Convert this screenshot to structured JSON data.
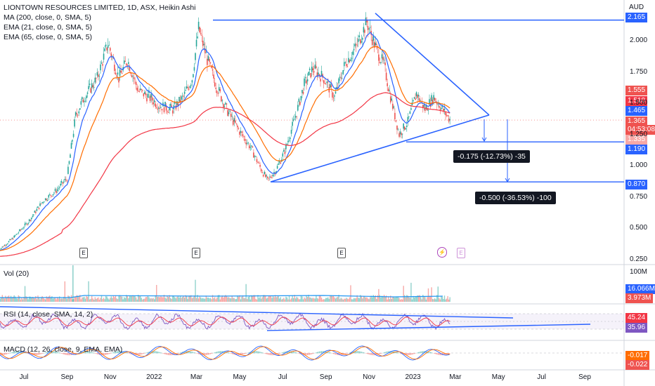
{
  "header": {
    "title": "LIONTOWN RESOURCES LIMITED, 1D, ASX, Heikin Ashi",
    "indicators": [
      "MA (200, close, 0, SMA, 5)",
      "EMA (21, close, 0, SMA, 5)",
      "EMA (65, close, 0, SMA, 5)"
    ]
  },
  "colors": {
    "up": "#26a69a",
    "down": "#ef5350",
    "ema21": "#2962ff",
    "ema65": "#ff6d00",
    "ma200": "#f23645",
    "trend": "#2962ff",
    "volume_ma": "#2196f3",
    "rsi": "#7e57c2",
    "rsi_ma": "#f23645",
    "macd": "#2962ff",
    "macd_signal": "#ff6d00"
  },
  "chart_data": [
    {
      "type": "line",
      "pane": "price",
      "currency": "AUD",
      "y_ticks": [
        "2.165",
        "2.000",
        "1.750",
        "1.500",
        "1.250",
        "1.000",
        "0.750",
        "0.500",
        "0.250"
      ],
      "x_ticks": [
        "Jul",
        "Sep",
        "Nov",
        "2022",
        "Mar",
        "May",
        "Jul",
        "Sep",
        "Nov",
        "2023",
        "Mar",
        "May",
        "Jul",
        "Sep"
      ],
      "price_tags": [
        {
          "label": "1.555",
          "kind": "ema65"
        },
        {
          "label": "1.510",
          "kind": "ma200"
        },
        {
          "label": "1.465",
          "kind": "ema21"
        },
        {
          "label": "1.365",
          "kind": "last"
        },
        {
          "label": "04:53:08",
          "kind": "countdown"
        },
        {
          "label": "1.335",
          "kind": "down"
        },
        {
          "label": "1.190",
          "kind": "level"
        },
        {
          "label": "0.870",
          "kind": "level"
        }
      ],
      "horizontal_levels": [
        2.165,
        1.19,
        0.87
      ],
      "triangle": {
        "apex": [
          "Nov 2022",
          2.2
        ],
        "right": [
          "Apr 2023",
          1.42
        ],
        "low": [
          "Jun 2022",
          0.87
        ],
        "mid": [
          "Dec 2022",
          1.2
        ]
      },
      "measurements": [
        "-0.175 (-12.73%) -35",
        "-0.500 (-36.53%) -100"
      ],
      "earnings_marks": [
        "E",
        "E",
        "E",
        "E"
      ],
      "dividend_mark": "⚡"
    },
    {
      "type": "bar",
      "pane": "volume",
      "label": "Vol (20)",
      "y_ticks": [
        "100M"
      ],
      "tags": [
        "16.066M",
        "3.973M"
      ]
    },
    {
      "type": "line",
      "pane": "rsi",
      "label": "RSI (14, close, SMA, 14, 2)",
      "tags": [
        "45.24",
        "35.96"
      ]
    },
    {
      "type": "line",
      "pane": "macd",
      "label": "MACD (12, 26, close, 9, EMA, EMA)",
      "tags": [
        "-0.017",
        "-0.022"
      ]
    }
  ]
}
